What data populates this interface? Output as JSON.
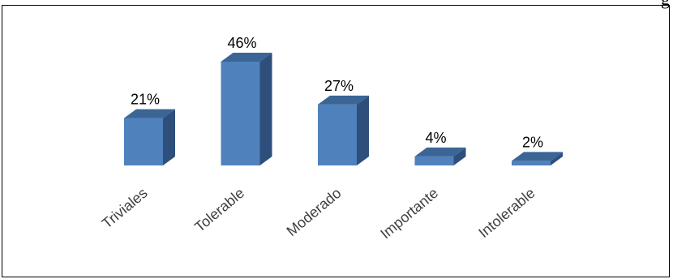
{
  "page": {
    "clipped_top_text": "g"
  },
  "chart_data": {
    "type": "bar",
    "style": "3d-column",
    "categories": [
      "Triviales",
      "Tolerable",
      "Moderado",
      "Importante",
      "Intolerable"
    ],
    "values": [
      21,
      46,
      27,
      4,
      2
    ],
    "value_labels": [
      "21%",
      "46%",
      "27%",
      "4%",
      "2%"
    ],
    "unit": "%",
    "ylim": [
      0,
      46
    ],
    "grid": false,
    "legend": "none",
    "colors": {
      "front": "#4F81BD",
      "side": "#2E4F7C",
      "top": "#3A6595"
    }
  }
}
